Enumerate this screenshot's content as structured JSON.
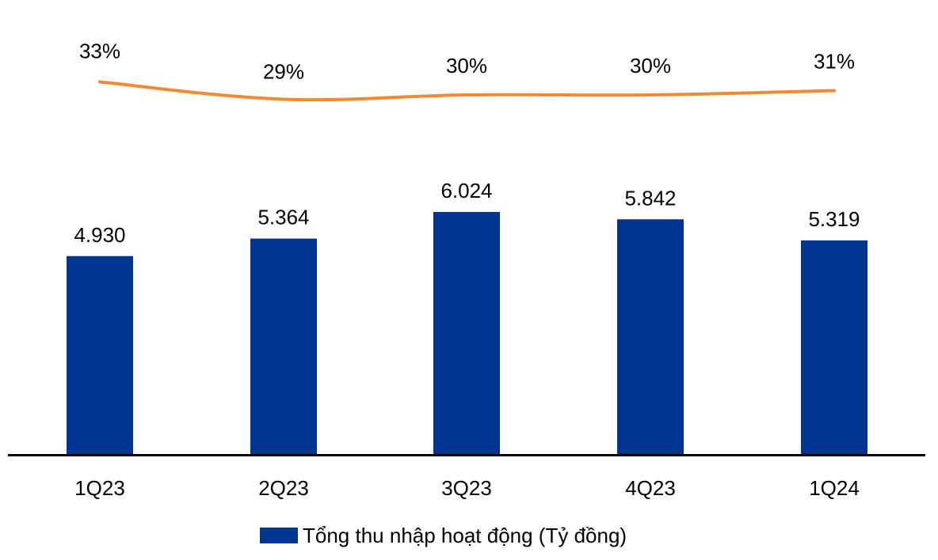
{
  "chart_data": {
    "type": "bar",
    "categories": [
      "1Q23",
      "2Q23",
      "3Q23",
      "4Q23",
      "1Q24"
    ],
    "series": [
      {
        "name": "Tổng thu nhập hoạt động (Tỷ đồng)",
        "type": "bar",
        "values": [
          4930,
          5364,
          6024,
          5842,
          5319
        ],
        "labels": [
          "4.930",
          "5.364",
          "6.024",
          "5.842",
          "5.319"
        ],
        "color": "#003591"
      },
      {
        "type": "line",
        "values": [
          33,
          29,
          30,
          30,
          31
        ],
        "labels": [
          "33%",
          "29%",
          "30%",
          "30%",
          "31%"
        ],
        "color": "#F08A34"
      }
    ]
  },
  "legend": {
    "label": "Tổng thu nhập hoạt động (Tỷ đồng)"
  }
}
